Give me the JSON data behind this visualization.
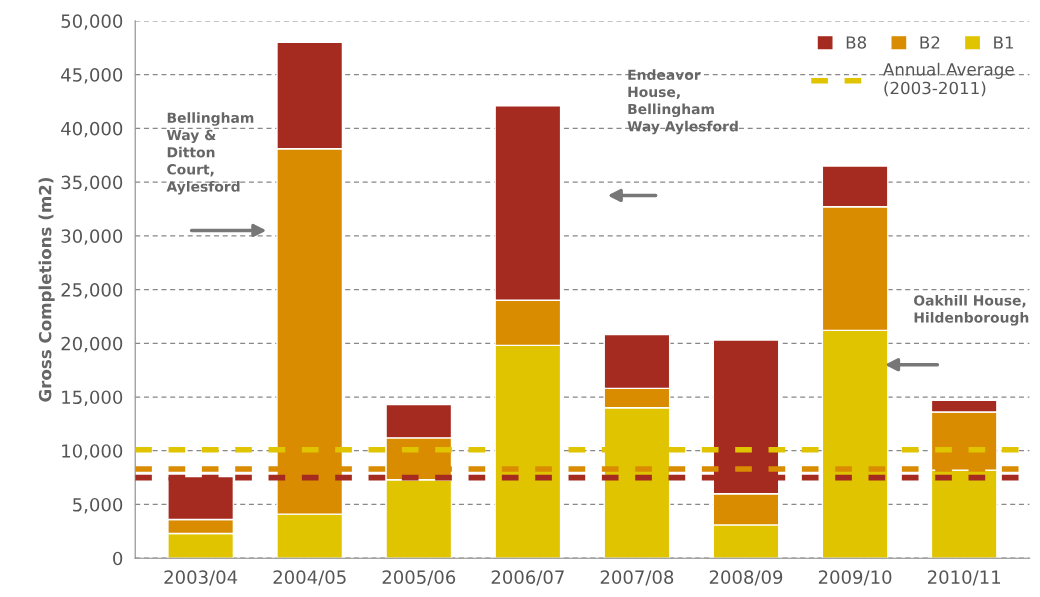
{
  "chart_data": {
    "type": "bar",
    "stacked": true,
    "ylabel": "Gross Completions (m2)",
    "categories": [
      "2003/04",
      "2004/05",
      "2005/06",
      "2006/07",
      "2007/08",
      "2008/09",
      "2009/10",
      "2010/11"
    ],
    "series": [
      {
        "name": "B1",
        "color": "#e0c400",
        "values": [
          2300,
          4100,
          7300,
          19800,
          14000,
          3100,
          21200,
          8200
        ]
      },
      {
        "name": "B2",
        "color": "#d98c00",
        "values": [
          1300,
          34000,
          3900,
          4200,
          1800,
          2900,
          11500,
          5400
        ]
      },
      {
        "name": "B8",
        "color": "#a52a1f",
        "values": [
          4000,
          9900,
          3100,
          18100,
          5000,
          14300,
          3800,
          1100
        ]
      }
    ],
    "ylim": [
      0,
      50000
    ],
    "yticks": [
      {
        "value": 0,
        "label": "0"
      },
      {
        "value": 5000,
        "label": "5,000"
      },
      {
        "value": 10000,
        "label": "10,000"
      },
      {
        "value": 15000,
        "label": "15,000"
      },
      {
        "value": 20000,
        "label": "20,000"
      },
      {
        "value": 25000,
        "label": "25,000"
      },
      {
        "value": 30000,
        "label": "30,000"
      },
      {
        "value": 35000,
        "label": "35,000"
      },
      {
        "value": 40000,
        "label": "40,000"
      },
      {
        "value": 45000,
        "label": "45,000"
      },
      {
        "value": 50000,
        "label": "50,000"
      }
    ],
    "ref_lines": [
      {
        "axis": "y",
        "value": 10100,
        "label": "Annual Average\n(2003-2011)",
        "color": "#e0c400",
        "line_style": "dashed"
      },
      {
        "axis": "y",
        "value": 8300,
        "color": "#d98c00",
        "line_style": "dashed"
      },
      {
        "axis": "y",
        "value": 7500,
        "color": "#a52a1f",
        "line_style": "dashed"
      }
    ],
    "annotations": [
      "Bellingham\nWay &\nDitton\nCourt,\nAylesford",
      "Endeavor\nHouse,\nBellingham\nWay Aylesford",
      "Oakhill House,\nHildenborough"
    ],
    "grid": "y",
    "legend": "top right"
  }
}
